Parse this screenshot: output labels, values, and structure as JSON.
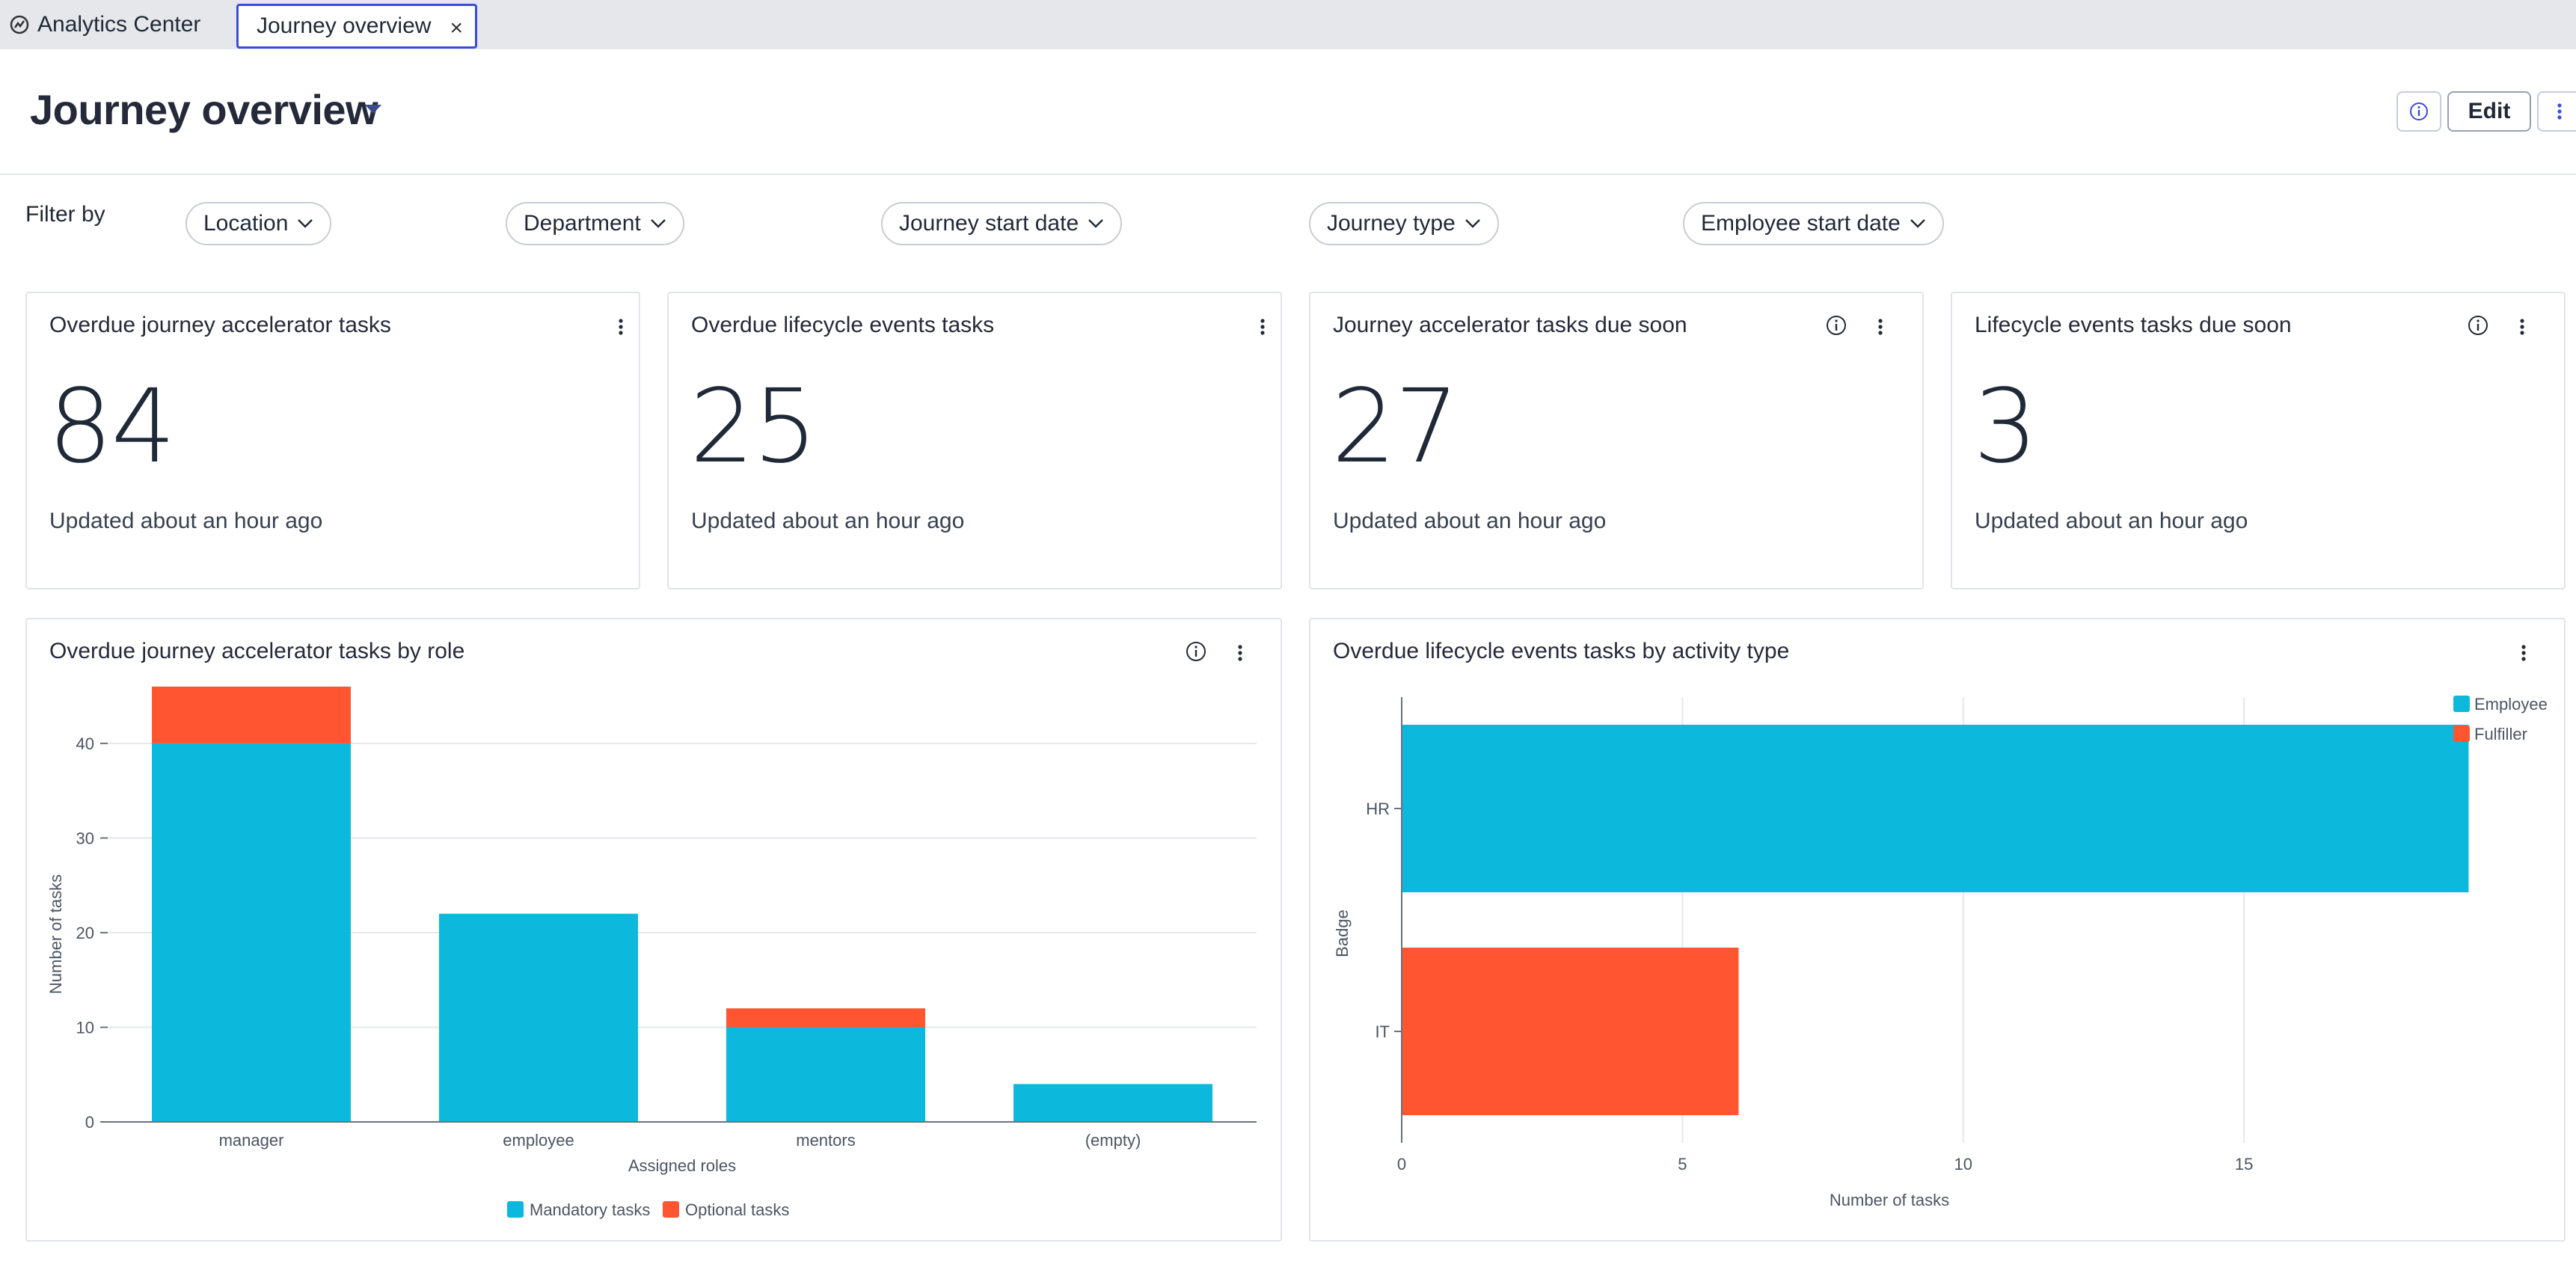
{
  "tabs": {
    "app_title": "Analytics Center",
    "active_label": "Journey overview",
    "close_symbol": "×"
  },
  "header": {
    "title": "Journey overview",
    "edit_label": "Edit"
  },
  "filters": {
    "label": "Filter by",
    "items": [
      "Location",
      "Department",
      "Journey start date",
      "Journey type",
      "Employee start date"
    ]
  },
  "kpis": [
    {
      "title": "Overdue journey accelerator tasks",
      "value": "84",
      "updated": "Updated about an hour ago",
      "has_info": false
    },
    {
      "title": "Overdue lifecycle events tasks",
      "value": "25",
      "updated": "Updated about an hour ago",
      "has_info": false
    },
    {
      "title": "Journey accelerator tasks due soon",
      "value": "27",
      "updated": "Updated about an hour ago",
      "has_info": true
    },
    {
      "title": "Lifecycle events tasks due soon",
      "value": "3",
      "updated": "Updated about an hour ago",
      "has_info": true
    }
  ],
  "colors": {
    "mandatory": "#0cb8dc",
    "optional": "#ff5531",
    "employee": "#0cb8dc",
    "fulfiller": "#ff5531"
  },
  "chart_data": [
    {
      "type": "bar",
      "stacked": true,
      "title": "Overdue journey accelerator tasks by role",
      "xlabel": "Assigned roles",
      "ylabel": "Number of tasks",
      "categories": [
        "manager",
        "employee",
        "mentors",
        "(empty)"
      ],
      "series": [
        {
          "name": "Mandatory tasks",
          "values": [
            40,
            22,
            10,
            4
          ]
        },
        {
          "name": "Optional tasks",
          "values": [
            6,
            0,
            2,
            0
          ]
        }
      ],
      "ylim": [
        0,
        46
      ],
      "yticks": [
        0,
        10,
        20,
        30,
        40
      ],
      "grid": true,
      "legend": "bottom"
    },
    {
      "type": "bar",
      "orientation": "horizontal",
      "title": "Overdue lifecycle events tasks by activity type",
      "xlabel": "Number of tasks",
      "ylabel": "Badge",
      "categories": [
        "HR",
        "IT"
      ],
      "series": [
        {
          "name": "Employee",
          "values": [
            19,
            0
          ]
        },
        {
          "name": "Fulfiller",
          "values": [
            0,
            6
          ]
        }
      ],
      "xlim": [
        0,
        19.5
      ],
      "xticks": [
        0,
        5,
        10,
        15
      ],
      "grid": true,
      "legend": "top-right"
    }
  ]
}
